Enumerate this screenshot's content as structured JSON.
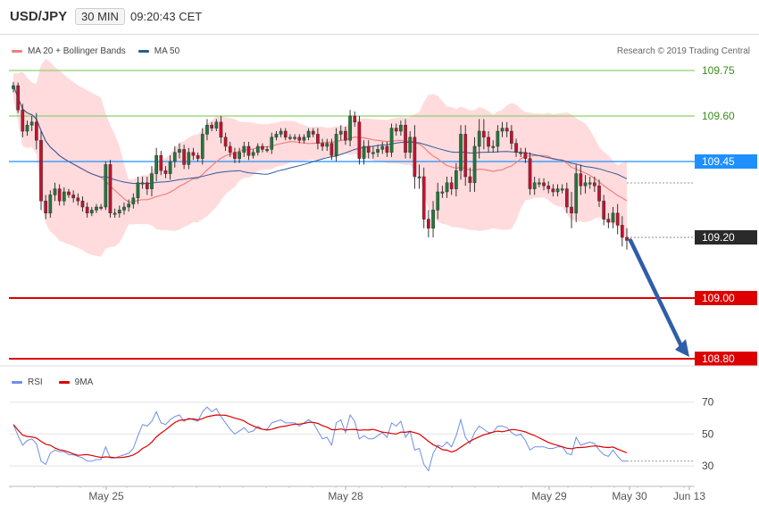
{
  "header": {
    "symbol": "USD/JPY",
    "timeframe": "30 MIN",
    "time": "09:20:43 CET"
  },
  "legend": {
    "ma20": "MA 20 + Bollinger Bands",
    "ma50": "MA 50",
    "rsi": "RSI",
    "ma9": "9MA"
  },
  "credit": "Research © 2019 Trading Central",
  "colors": {
    "up": "#1e7a3a",
    "down": "#c8102e",
    "band": "#ffcfd2",
    "ma20": "#f08080",
    "ma50": "#2e5a9c",
    "pivot": "#1e90ff",
    "target": "#dd0000",
    "resist": "#8fd26b",
    "rsi": "#6d8fe6",
    "rsi_ma": "#dd0000",
    "arrow": "#2f5ea8"
  },
  "chart_data": {
    "type": "candlestick",
    "ylim": [
      108.72,
      109.82
    ],
    "x_ticks": [
      "May 25",
      "May 28",
      "May 29",
      "May 30",
      "Jun 13"
    ],
    "levels": [
      {
        "value": 109.75,
        "label": "109.75",
        "kind": "resist"
      },
      {
        "value": 109.6,
        "label": "109.60",
        "kind": "resist"
      },
      {
        "value": 109.45,
        "label": "109.45",
        "kind": "pivot"
      },
      {
        "value": 109.2,
        "label": "109.20",
        "kind": "current"
      },
      {
        "value": 109.0,
        "label": "109.00",
        "kind": "target"
      },
      {
        "value": 108.8,
        "label": "108.80",
        "kind": "target"
      }
    ],
    "closes": [
      109.7,
      109.62,
      109.55,
      109.57,
      109.58,
      109.52,
      109.32,
      109.28,
      109.34,
      109.36,
      109.32,
      109.35,
      109.34,
      109.33,
      109.32,
      109.3,
      109.28,
      109.29,
      109.3,
      109.3,
      109.44,
      109.28,
      109.28,
      109.29,
      109.3,
      109.31,
      109.33,
      109.38,
      109.38,
      109.36,
      109.41,
      109.47,
      109.42,
      109.41,
      109.45,
      109.48,
      109.49,
      109.44,
      109.48,
      109.47,
      109.46,
      109.54,
      109.57,
      109.56,
      109.58,
      109.53,
      109.5,
      109.48,
      109.46,
      109.48,
      109.5,
      109.47,
      109.48,
      109.5,
      109.49,
      109.49,
      109.53,
      109.54,
      109.55,
      109.53,
      109.53,
      109.53,
      109.52,
      109.53,
      109.55,
      109.54,
      109.51,
      109.5,
      109.51,
      109.47,
      109.54,
      109.55,
      109.52,
      109.6,
      109.58,
      109.46,
      109.5,
      109.48,
      109.48,
      109.49,
      109.5,
      109.48,
      109.56,
      109.55,
      109.57,
      109.48,
      109.53,
      109.4,
      109.4,
      109.26,
      109.23,
      109.29,
      109.35,
      109.35,
      109.38,
      109.36,
      109.42,
      109.54,
      109.4,
      109.38,
      109.5,
      109.55,
      109.53,
      109.5,
      109.5,
      109.55,
      109.56,
      109.55,
      109.51,
      109.48,
      109.48,
      109.46,
      109.36,
      109.38,
      109.38,
      109.37,
      109.36,
      109.35,
      109.36,
      109.36,
      109.3,
      109.28,
      109.41,
      109.37,
      109.38,
      109.38,
      109.37,
      109.32,
      109.26,
      109.25,
      109.28,
      109.24,
      109.2,
      109.19
    ],
    "volatility": [
      0.012,
      0.01,
      0.02,
      0.015,
      0.02,
      0.03,
      0.03,
      0.02,
      0.015,
      0.02,
      0.015,
      0.015,
      0.01,
      0.015,
      0.015,
      0.015,
      0.015,
      0.01,
      0.01,
      0.01,
      0.01,
      0.015,
      0.015,
      0.015,
      0.015,
      0.015,
      0.015,
      0.02,
      0.02,
      0.02,
      0.025,
      0.025,
      0.015,
      0.015,
      0.02,
      0.02,
      0.02,
      0.015,
      0.015,
      0.015,
      0.01,
      0.02,
      0.02,
      0.01,
      0.01,
      0.02,
      0.015,
      0.015,
      0.015,
      0.015,
      0.015,
      0.015,
      0.01,
      0.01,
      0.01,
      0.01,
      0.015,
      0.01,
      0.01,
      0.01,
      0.01,
      0.01,
      0.01,
      0.01,
      0.01,
      0.01,
      0.02,
      0.015,
      0.015,
      0.015,
      0.02,
      0.02,
      0.015,
      0.02,
      0.015,
      0.02,
      0.02,
      0.02,
      0.02,
      0.015,
      0.015,
      0.015,
      0.015,
      0.015,
      0.015,
      0.02,
      0.02,
      0.04,
      0.04,
      0.03,
      0.03,
      0.03,
      0.03,
      0.02,
      0.02,
      0.02,
      0.025,
      0.03,
      0.03,
      0.03,
      0.03,
      0.04,
      0.04,
      0.02,
      0.02,
      0.02,
      0.02,
      0.02,
      0.02,
      0.015,
      0.015,
      0.015,
      0.02,
      0.02,
      0.015,
      0.015,
      0.015,
      0.015,
      0.015,
      0.015,
      0.02,
      0.05,
      0.03,
      0.03,
      0.025,
      0.02,
      0.02,
      0.02,
      0.02,
      0.02,
      0.02,
      0.03,
      0.03,
      0.03
    ],
    "rsi": [
      56,
      49,
      43,
      46,
      47,
      44,
      33,
      31,
      38,
      40,
      39,
      39,
      37,
      37,
      36,
      35,
      33,
      33,
      34,
      34,
      42,
      35,
      35,
      36,
      37,
      38,
      41,
      49,
      56,
      55,
      58,
      64,
      57,
      56,
      59,
      61,
      62,
      58,
      60,
      59,
      58,
      64,
      67,
      64,
      66,
      61,
      57,
      53,
      50,
      52,
      54,
      51,
      52,
      55,
      53,
      53,
      57,
      58,
      59,
      57,
      57,
      57,
      55,
      57,
      59,
      57,
      52,
      47,
      48,
      43,
      57,
      59,
      51,
      62,
      58,
      47,
      49,
      47,
      47,
      49,
      51,
      48,
      57,
      55,
      58,
      48,
      52,
      40,
      41,
      31,
      27,
      38,
      43,
      42,
      45,
      42,
      49,
      59,
      48,
      44,
      51,
      55,
      53,
      51,
      51,
      55,
      55,
      54,
      51,
      49,
      50,
      46,
      40,
      42,
      42,
      42,
      41,
      41,
      42,
      42,
      38,
      37,
      48,
      43,
      44,
      45,
      44,
      40,
      37,
      36,
      40,
      36,
      33,
      33
    ],
    "rsi_ticks": [
      70,
      50,
      30
    ],
    "rsi_ylim": [
      20,
      76
    ]
  }
}
